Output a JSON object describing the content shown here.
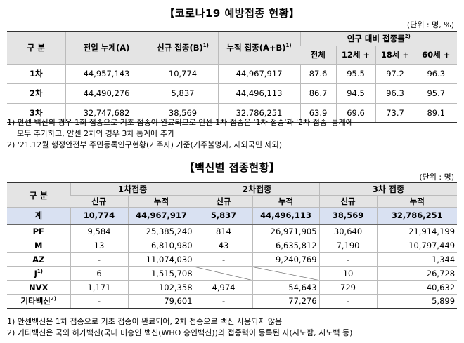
{
  "title1": "【코로나19 예방접종 현황】",
  "unit1": "(단위 : 명, %)",
  "table1": {
    "headers": {
      "category": "구 분",
      "prev_total": "전일 누계(A)",
      "new": "신규 접종(B)",
      "new_sup": "1)",
      "cumulative": "누적 접종(A+B)",
      "cumulative_sup": "1)",
      "rate": "인구 대비 접종률",
      "rate_sup": "2)",
      "total": "전체",
      "age12": "12세 +",
      "age18": "18세 +",
      "age60": "60세 +"
    },
    "rows": [
      {
        "label": "1차",
        "prev": "44,957,143",
        "new": "10,774",
        "cum": "44,967,917",
        "total": "87.6",
        "a12": "95.5",
        "a18": "97.2",
        "a60": "96.3"
      },
      {
        "label": "2차",
        "prev": "44,490,276",
        "new": "5,837",
        "cum": "44,496,113",
        "total": "86.7",
        "a12": "94.5",
        "a18": "96.3",
        "a60": "95.7"
      },
      {
        "label": "3차",
        "prev": "32,747,682",
        "new": "38,569",
        "cum": "32,786,251",
        "total": "63.9",
        "a12": "69.6",
        "a18": "73.7",
        "a60": "89.1"
      }
    ]
  },
  "notes1": {
    "n1a": "1) 안센 백신의 경우 1회 접종으로 기초 접종이 완료되므로 안센 1차 접종은 '1차 접종'과 '2차 접종' 통계에",
    "n1b": "모두 추가하고, 얀센 2차의 경우 3차 통계에 추가",
    "n2": "2) '21.12월 행정안전부 주민등록인구현황(거주자) 기준(거주불명자, 재외국민 제외)"
  },
  "title2": "【백신별 접종현황】",
  "unit2": "(단위 : 명)",
  "table2": {
    "headers": {
      "category": "구 분",
      "dose1": "1차접종",
      "dose2": "2차접종",
      "dose3": "3차 접종",
      "new": "신규",
      "cum": "누적"
    },
    "rows": [
      {
        "label": "계",
        "sup": "",
        "d1n": "10,774",
        "d1c": "44,967,917",
        "d2n": "5,837",
        "d2c": "44,496,113",
        "d3n": "38,569",
        "d3c": "32,786,251"
      },
      {
        "label": "PF",
        "sup": "",
        "d1n": "9,584",
        "d1c": "25,385,240",
        "d2n": "814",
        "d2c": "26,971,905",
        "d3n": "30,640",
        "d3c": "21,914,199"
      },
      {
        "label": "M",
        "sup": "",
        "d1n": "13",
        "d1c": "6,810,980",
        "d2n": "43",
        "d2c": "6,635,812",
        "d3n": "7,190",
        "d3c": "10,797,449"
      },
      {
        "label": "AZ",
        "sup": "",
        "d1n": "-",
        "d1c": "11,074,030",
        "d2n": "-",
        "d2c": "9,240,769",
        "d3n": "-",
        "d3c": "1,344"
      },
      {
        "label": "J",
        "sup": "1)",
        "d1n": "6",
        "d1c": "1,515,708",
        "d2n": "",
        "d2c": "",
        "d3n": "10",
        "d3c": "26,728"
      },
      {
        "label": "NVX",
        "sup": "",
        "d1n": "1,171",
        "d1c": "102,358",
        "d2n": "4,974",
        "d2c": "54,643",
        "d3n": "729",
        "d3c": "40,632"
      },
      {
        "label": "기타백신",
        "sup": "2)",
        "d1n": "-",
        "d1c": "79,601",
        "d2n": "-",
        "d2c": "77,276",
        "d3n": "-",
        "d3c": "5,899"
      }
    ]
  },
  "notes2": {
    "n1": "1) 안센백신은 1차 접종으로 기초 접종이 완료되어, 2차 접종으로 백신 사용되지 않음",
    "n2": "2) 기타백신은 국외 허가백신(국내 미승인 백신(WHO 승인백신))의 접종력이 등록된 자(시노팜, 시노백 등)"
  },
  "colors": {
    "header_bg": "#e4e4e4",
    "total_row_bg": "#d9e1f2"
  }
}
